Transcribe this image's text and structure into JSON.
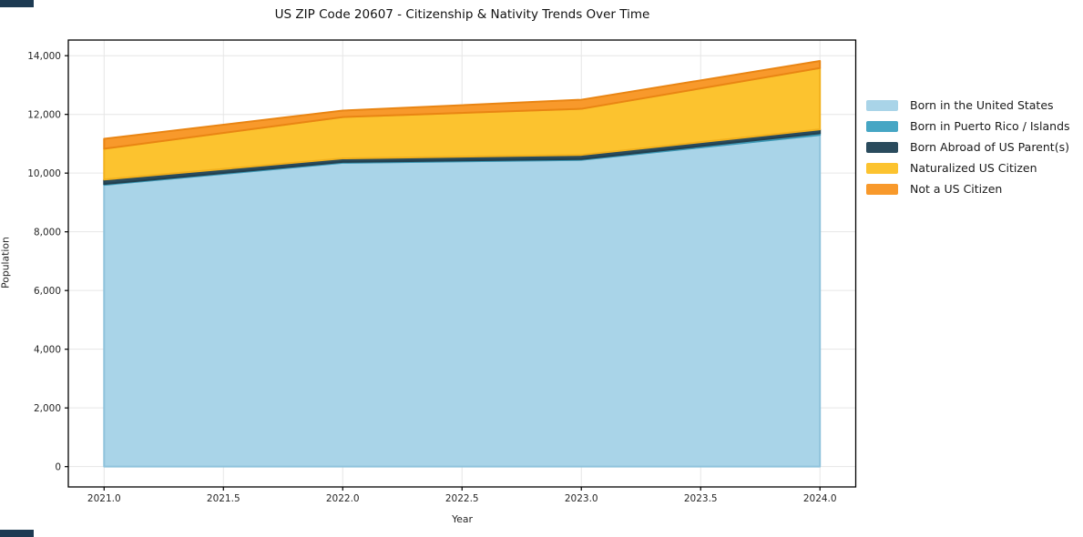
{
  "figure": {
    "background": "#ffffff",
    "corner_bar_color": "#1d3a52"
  },
  "chart_data": {
    "type": "area",
    "stacked": true,
    "title": "US ZIP Code 20607 - Citizenship & Nativity Trends Over Time",
    "xlabel": "Year",
    "ylabel": "Population",
    "x": [
      2021,
      2022,
      2023,
      2024
    ],
    "series": [
      {
        "name": "Born in the United States",
        "values": [
          9600,
          10350,
          10450,
          11300
        ],
        "color": "#A9D4E8",
        "edge": "#8FC3DC"
      },
      {
        "name": "Born in Puerto Rico / Islands",
        "values": [
          30,
          30,
          30,
          60
        ],
        "color": "#46A6C4",
        "edge": "#3C98B5"
      },
      {
        "name": "Born Abroad of US Parent(s)",
        "values": [
          150,
          120,
          140,
          130
        ],
        "color": "#2A4B5D",
        "edge": "#22404F"
      },
      {
        "name": "Naturalized US Citizen",
        "values": [
          1050,
          1410,
          1570,
          2090
        ],
        "color": "#FCC32F",
        "edge": "#F2B11D"
      },
      {
        "name": "Not a US Citizen",
        "values": [
          340,
          220,
          310,
          240
        ],
        "color": "#F8992B",
        "edge": "#E98513"
      }
    ],
    "stack_totals": [
      11170,
      12130,
      12500,
      13820
    ],
    "xlim": [
      2020.85,
      2024.15
    ],
    "ylim": [
      -692,
      14533
    ],
    "xticks": {
      "values": [
        2021,
        2021.5,
        2022,
        2022.5,
        2023,
        2023.5,
        2024
      ],
      "labels": [
        "2021.0",
        "2021.5",
        "2022.0",
        "2022.5",
        "2023.0",
        "2023.5",
        "2024.0"
      ]
    },
    "yticks": {
      "values": [
        0,
        2000,
        4000,
        6000,
        8000,
        10000,
        12000,
        14000
      ],
      "labels": [
        "0",
        "2,000",
        "4,000",
        "6,000",
        "8,000",
        "10,000",
        "12,000",
        "14,000"
      ]
    },
    "grid": true,
    "grid_color": "#e6e6e6",
    "spine_color": "#000000",
    "tick_text_color": "#262626",
    "legend_position": "right-outside"
  }
}
